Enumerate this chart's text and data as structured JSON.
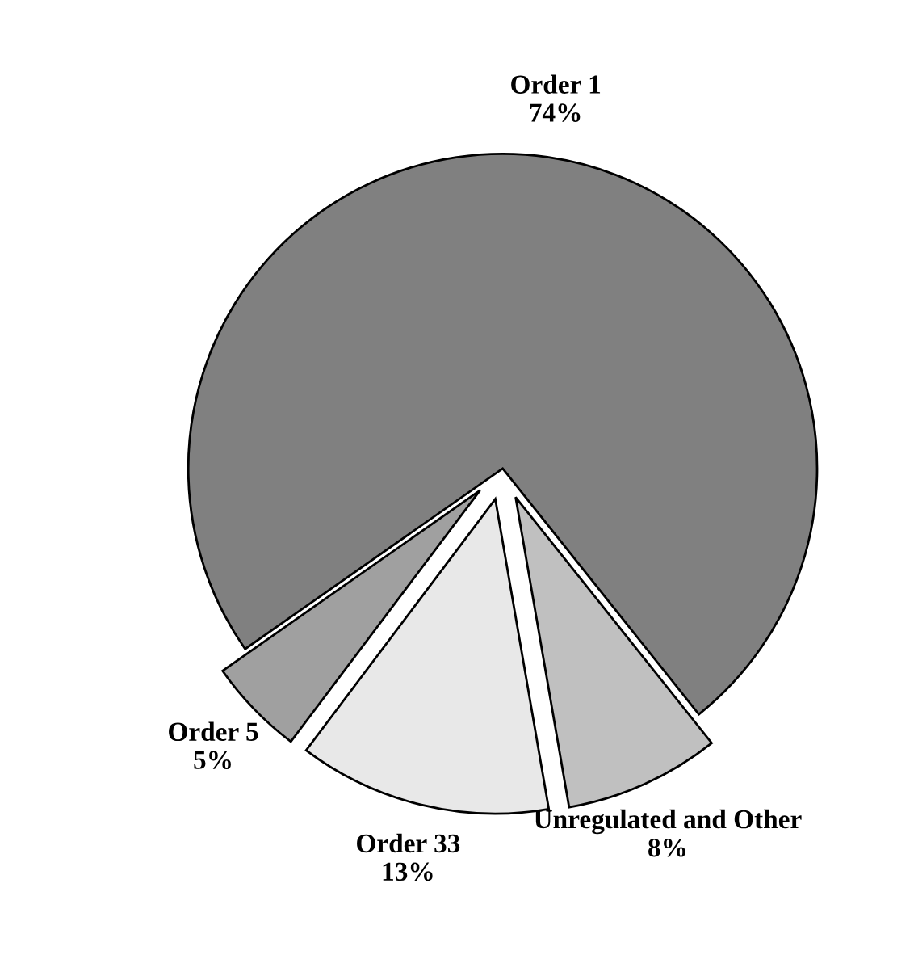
{
  "chart_data": {
    "type": "pie",
    "categories": [
      "Order 1",
      "Unregulated and Other",
      "Order 33",
      "Order 5"
    ],
    "values": [
      74,
      8,
      13,
      5
    ],
    "value_labels": [
      "74%",
      "8%",
      "13%",
      "5%"
    ],
    "colors": [
      "#808080",
      "#c0c0c0",
      "#e8e8e8",
      "#a0a0a0"
    ],
    "legend": false
  }
}
